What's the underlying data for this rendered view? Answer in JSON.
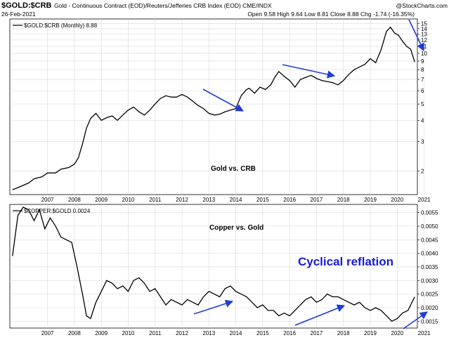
{
  "colors": {
    "line": "#000000",
    "arrow": "#1f3bdb",
    "grid": "#d9d9d9",
    "highlight": "#1a1ad6"
  },
  "header": {
    "symbol": "$GOLD:$CRB",
    "description": "Gold - Continuous Contract (EOD)/Reuters/Jefferies CRB Index (EOD) CME/INDX",
    "brand": "@StockCharts.com",
    "date": "26-Feb-2021",
    "ohlc": "Open 9.58 High 9.64 Low 8.81 Close 8.88 Chg -1.74 (-16.35%)"
  },
  "icons": {
    "arrow_down": "arrow-down-icon",
    "arrow_up": "arrow-up-icon"
  },
  "chart_data": [
    {
      "type": "line",
      "legend": "$GOLD:$CRB (Monthly) 8.88",
      "annotation": "Gold vs. CRB",
      "y_scale": "log",
      "ylim": [
        1.45,
        16
      ],
      "y_ticks": [
        "2",
        "3",
        "4",
        "5",
        "6",
        "7",
        "8",
        "9",
        "10",
        "11",
        "12",
        "13",
        "14",
        "15"
      ],
      "x_ticks": [
        "2007",
        "2008",
        "2009",
        "2010",
        "2011",
        "2012",
        "2013",
        "2014",
        "2015",
        "2016",
        "2017",
        "2018",
        "2019",
        "2020",
        "2021"
      ],
      "x": [
        2006.2,
        2006.5,
        2006.8,
        2007.0,
        2007.3,
        2007.5,
        2007.8,
        2008.0,
        2008.3,
        2008.5,
        2008.65,
        2008.8,
        2008.95,
        2009.1,
        2009.3,
        2009.5,
        2009.7,
        2009.9,
        2010.1,
        2010.3,
        2010.5,
        2010.7,
        2010.9,
        2011.1,
        2011.3,
        2011.5,
        2011.7,
        2011.9,
        2012.1,
        2012.3,
        2012.5,
        2012.7,
        2012.9,
        2013.1,
        2013.3,
        2013.5,
        2013.7,
        2013.9,
        2014.1,
        2014.3,
        2014.5,
        2014.7,
        2014.9,
        2015.0,
        2015.2,
        2015.4,
        2015.6,
        2015.8,
        2015.95,
        2016.1,
        2016.3,
        2016.5,
        2016.7,
        2016.9,
        2017.1,
        2017.3,
        2017.5,
        2017.7,
        2017.9,
        2018.1,
        2018.3,
        2018.5,
        2018.7,
        2018.9,
        2019.1,
        2019.3,
        2019.5,
        2019.7,
        2019.9,
        2020.1,
        2020.25,
        2020.4,
        2020.55,
        2020.7,
        2020.85,
        2021.0,
        2021.15
      ],
      "y": [
        1.55,
        1.62,
        1.7,
        1.8,
        1.85,
        1.95,
        1.95,
        2.05,
        2.1,
        2.2,
        2.4,
        2.9,
        3.6,
        4.1,
        4.4,
        4.0,
        4.15,
        4.25,
        4.0,
        4.3,
        4.6,
        4.8,
        4.5,
        4.3,
        4.6,
        5.0,
        5.4,
        5.6,
        5.5,
        5.5,
        5.7,
        5.5,
        5.2,
        4.9,
        4.7,
        4.4,
        4.3,
        4.35,
        4.5,
        4.6,
        4.7,
        5.6,
        6.1,
        6.2,
        5.8,
        6.3,
        6.1,
        6.5,
        7.2,
        7.8,
        7.3,
        6.9,
        6.3,
        7.0,
        7.2,
        7.4,
        7.1,
        6.9,
        6.8,
        6.7,
        6.5,
        6.9,
        7.5,
        8.0,
        8.3,
        8.6,
        9.3,
        8.8,
        10.5,
        13.5,
        14.3,
        13.2,
        12.8,
        11.8,
        11.0,
        10.6,
        8.88
      ]
    },
    {
      "type": "line",
      "legend": "$COPPER:$GOLD 0.0024",
      "annotation": "Copper vs. Gold",
      "callout": "Cyclical reflation",
      "ylim": [
        0.00125,
        0.0058
      ],
      "y_ticks": [
        "0.0015",
        "0.0020",
        "0.0025",
        "0.0030",
        "0.0035",
        "0.0040",
        "0.0045",
        "0.0050",
        "0.0055"
      ],
      "x_ticks": [
        "2007",
        "2008",
        "2009",
        "2010",
        "2011",
        "2012",
        "2013",
        "2014",
        "2015",
        "2016",
        "2017",
        "2018",
        "2019",
        "2020",
        "2021"
      ],
      "x": [
        2006.2,
        2006.4,
        2006.6,
        2006.8,
        2007.0,
        2007.2,
        2007.4,
        2007.6,
        2007.8,
        2008.0,
        2008.2,
        2008.4,
        2008.6,
        2008.8,
        2008.95,
        2009.1,
        2009.3,
        2009.5,
        2009.7,
        2009.9,
        2010.1,
        2010.3,
        2010.5,
        2010.7,
        2010.9,
        2011.1,
        2011.3,
        2011.5,
        2011.7,
        2011.9,
        2012.1,
        2012.3,
        2012.5,
        2012.7,
        2012.9,
        2013.1,
        2013.3,
        2013.5,
        2013.7,
        2013.9,
        2014.1,
        2014.3,
        2014.5,
        2014.7,
        2014.9,
        2015.1,
        2015.3,
        2015.5,
        2015.7,
        2015.9,
        2016.1,
        2016.3,
        2016.5,
        2016.7,
        2016.9,
        2017.1,
        2017.3,
        2017.5,
        2017.7,
        2017.9,
        2018.1,
        2018.3,
        2018.5,
        2018.7,
        2018.9,
        2019.1,
        2019.3,
        2019.5,
        2019.7,
        2019.9,
        2020.1,
        2020.3,
        2020.5,
        2020.7,
        2020.9,
        2021.1,
        2021.15
      ],
      "y": [
        0.0039,
        0.0054,
        0.0057,
        0.0056,
        0.0052,
        0.0056,
        0.0049,
        0.0053,
        0.005,
        0.0046,
        0.0045,
        0.0044,
        0.0035,
        0.0025,
        0.0017,
        0.0016,
        0.0022,
        0.0026,
        0.003,
        0.0029,
        0.0027,
        0.0028,
        0.0026,
        0.003,
        0.0031,
        0.0029,
        0.0026,
        0.0027,
        0.0024,
        0.0021,
        0.0023,
        0.0022,
        0.0021,
        0.0023,
        0.0022,
        0.0021,
        0.0024,
        0.0026,
        0.0025,
        0.0024,
        0.0027,
        0.0028,
        0.0026,
        0.0025,
        0.0024,
        0.0022,
        0.002,
        0.0021,
        0.0019,
        0.0019,
        0.0017,
        0.0018,
        0.0017,
        0.0019,
        0.0021,
        0.0023,
        0.0024,
        0.0022,
        0.0023,
        0.0025,
        0.0024,
        0.0024,
        0.0023,
        0.0022,
        0.0021,
        0.0022,
        0.002,
        0.0019,
        0.002,
        0.0019,
        0.0017,
        0.0015,
        0.0016,
        0.0018,
        0.0019,
        0.0023,
        0.0024
      ]
    }
  ]
}
